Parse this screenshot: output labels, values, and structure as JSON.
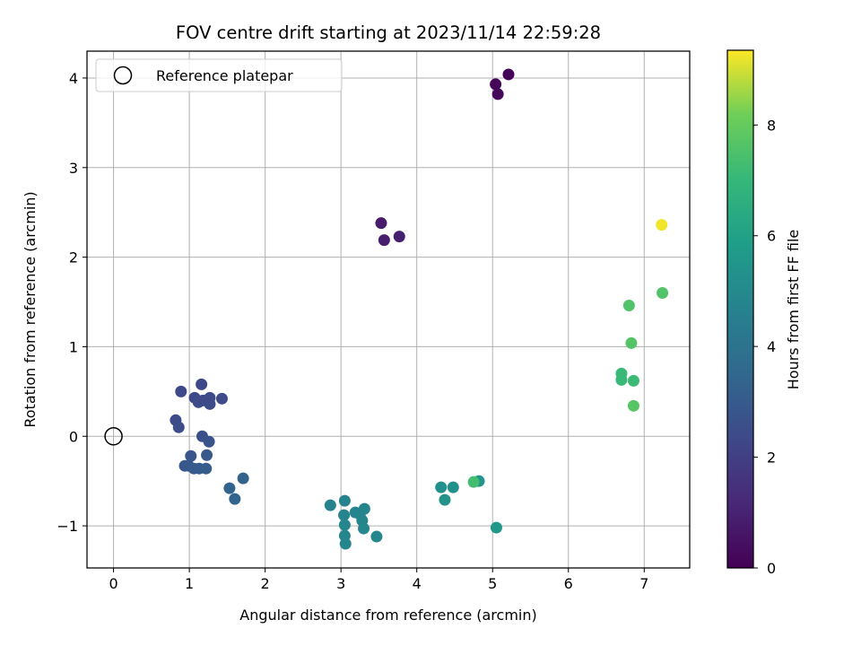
{
  "chart_data": {
    "type": "scatter",
    "title": "FOV centre drift starting at 2023/11/14 22:59:28",
    "xlabel": "Angular distance from reference (arcmin)",
    "ylabel": "Rotation from reference (arcmin)",
    "xlim": [
      -0.35,
      7.6
    ],
    "ylim": [
      -1.47,
      4.3
    ],
    "xticks": [
      0,
      1,
      2,
      3,
      4,
      5,
      6,
      7
    ],
    "yticks": [
      -1,
      0,
      1,
      2,
      3,
      4
    ],
    "xtick_labels": [
      "0",
      "1",
      "2",
      "3",
      "4",
      "5",
      "6",
      "7"
    ],
    "ytick_labels": [
      "−1",
      "0",
      "1",
      "2",
      "3",
      "4"
    ],
    "grid": true,
    "legend": {
      "placement": "top-left",
      "entries": [
        {
          "label": "Reference platepar",
          "marker": "open-circle"
        }
      ]
    },
    "reference_point": {
      "x": 0,
      "y": 0
    },
    "colorbar": {
      "label": "Hours from first FF file",
      "range": [
        0,
        9.35
      ],
      "ticks": [
        0,
        2,
        4,
        6,
        8
      ],
      "tick_labels": [
        "0",
        "2",
        "4",
        "6",
        "8"
      ],
      "colormap": "viridis"
    },
    "points": [
      {
        "x": 5.21,
        "y": 4.04,
        "c": 0.1
      },
      {
        "x": 5.04,
        "y": 3.93,
        "c": 0.15
      },
      {
        "x": 5.07,
        "y": 3.82,
        "c": 0.2
      },
      {
        "x": 3.53,
        "y": 2.38,
        "c": 0.8
      },
      {
        "x": 3.57,
        "y": 2.19,
        "c": 0.85
      },
      {
        "x": 3.77,
        "y": 2.23,
        "c": 0.9
      },
      {
        "x": 0.89,
        "y": 0.5,
        "c": 2.3
      },
      {
        "x": 1.16,
        "y": 0.58,
        "c": 2.3
      },
      {
        "x": 1.07,
        "y": 0.43,
        "c": 2.35
      },
      {
        "x": 1.18,
        "y": 0.4,
        "c": 2.35
      },
      {
        "x": 1.27,
        "y": 0.43,
        "c": 2.4
      },
      {
        "x": 1.12,
        "y": 0.38,
        "c": 2.4
      },
      {
        "x": 1.43,
        "y": 0.42,
        "c": 2.4
      },
      {
        "x": 1.27,
        "y": 0.36,
        "c": 2.45
      },
      {
        "x": 0.82,
        "y": 0.18,
        "c": 2.45
      },
      {
        "x": 0.86,
        "y": 0.1,
        "c": 2.5
      },
      {
        "x": 1.17,
        "y": 0.0,
        "c": 2.6
      },
      {
        "x": 1.26,
        "y": -0.06,
        "c": 2.7
      },
      {
        "x": 1.02,
        "y": -0.22,
        "c": 2.8
      },
      {
        "x": 1.23,
        "y": -0.21,
        "c": 2.85
      },
      {
        "x": 0.94,
        "y": -0.33,
        "c": 2.9
      },
      {
        "x": 0.99,
        "y": -0.33,
        "c": 2.9
      },
      {
        "x": 1.06,
        "y": -0.36,
        "c": 3.0
      },
      {
        "x": 1.13,
        "y": -0.36,
        "c": 3.0
      },
      {
        "x": 1.22,
        "y": -0.36,
        "c": 3.05
      },
      {
        "x": 1.71,
        "y": -0.47,
        "c": 3.3
      },
      {
        "x": 1.53,
        "y": -0.58,
        "c": 3.35
      },
      {
        "x": 1.6,
        "y": -0.7,
        "c": 3.4
      },
      {
        "x": 2.86,
        "y": -0.77,
        "c": 4.7
      },
      {
        "x": 3.05,
        "y": -0.72,
        "c": 4.7
      },
      {
        "x": 3.04,
        "y": -0.88,
        "c": 4.75
      },
      {
        "x": 3.19,
        "y": -0.85,
        "c": 4.75
      },
      {
        "x": 3.25,
        "y": -0.87,
        "c": 4.8
      },
      {
        "x": 3.31,
        "y": -0.81,
        "c": 4.8
      },
      {
        "x": 3.28,
        "y": -0.94,
        "c": 4.8
      },
      {
        "x": 3.05,
        "y": -0.99,
        "c": 4.85
      },
      {
        "x": 3.3,
        "y": -1.03,
        "c": 4.85
      },
      {
        "x": 3.05,
        "y": -1.11,
        "c": 4.85
      },
      {
        "x": 3.06,
        "y": -1.2,
        "c": 4.9
      },
      {
        "x": 3.47,
        "y": -1.12,
        "c": 4.9
      },
      {
        "x": 4.32,
        "y": -0.57,
        "c": 5.3
      },
      {
        "x": 4.48,
        "y": -0.57,
        "c": 5.3
      },
      {
        "x": 4.37,
        "y": -0.71,
        "c": 5.35
      },
      {
        "x": 4.82,
        "y": -0.5,
        "c": 5.45
      },
      {
        "x": 5.05,
        "y": -1.02,
        "c": 5.6
      },
      {
        "x": 4.75,
        "y": -0.51,
        "c": 7.3
      },
      {
        "x": 6.8,
        "y": 1.46,
        "c": 7.6
      },
      {
        "x": 6.83,
        "y": 1.04,
        "c": 7.65
      },
      {
        "x": 6.7,
        "y": 0.7,
        "c": 7.1
      },
      {
        "x": 6.7,
        "y": 0.63,
        "c": 7.1
      },
      {
        "x": 6.86,
        "y": 0.62,
        "c": 7.15
      },
      {
        "x": 6.86,
        "y": 0.34,
        "c": 7.7
      },
      {
        "x": 7.24,
        "y": 1.6,
        "c": 7.6
      },
      {
        "x": 7.23,
        "y": 2.36,
        "c": 9.25
      }
    ]
  }
}
